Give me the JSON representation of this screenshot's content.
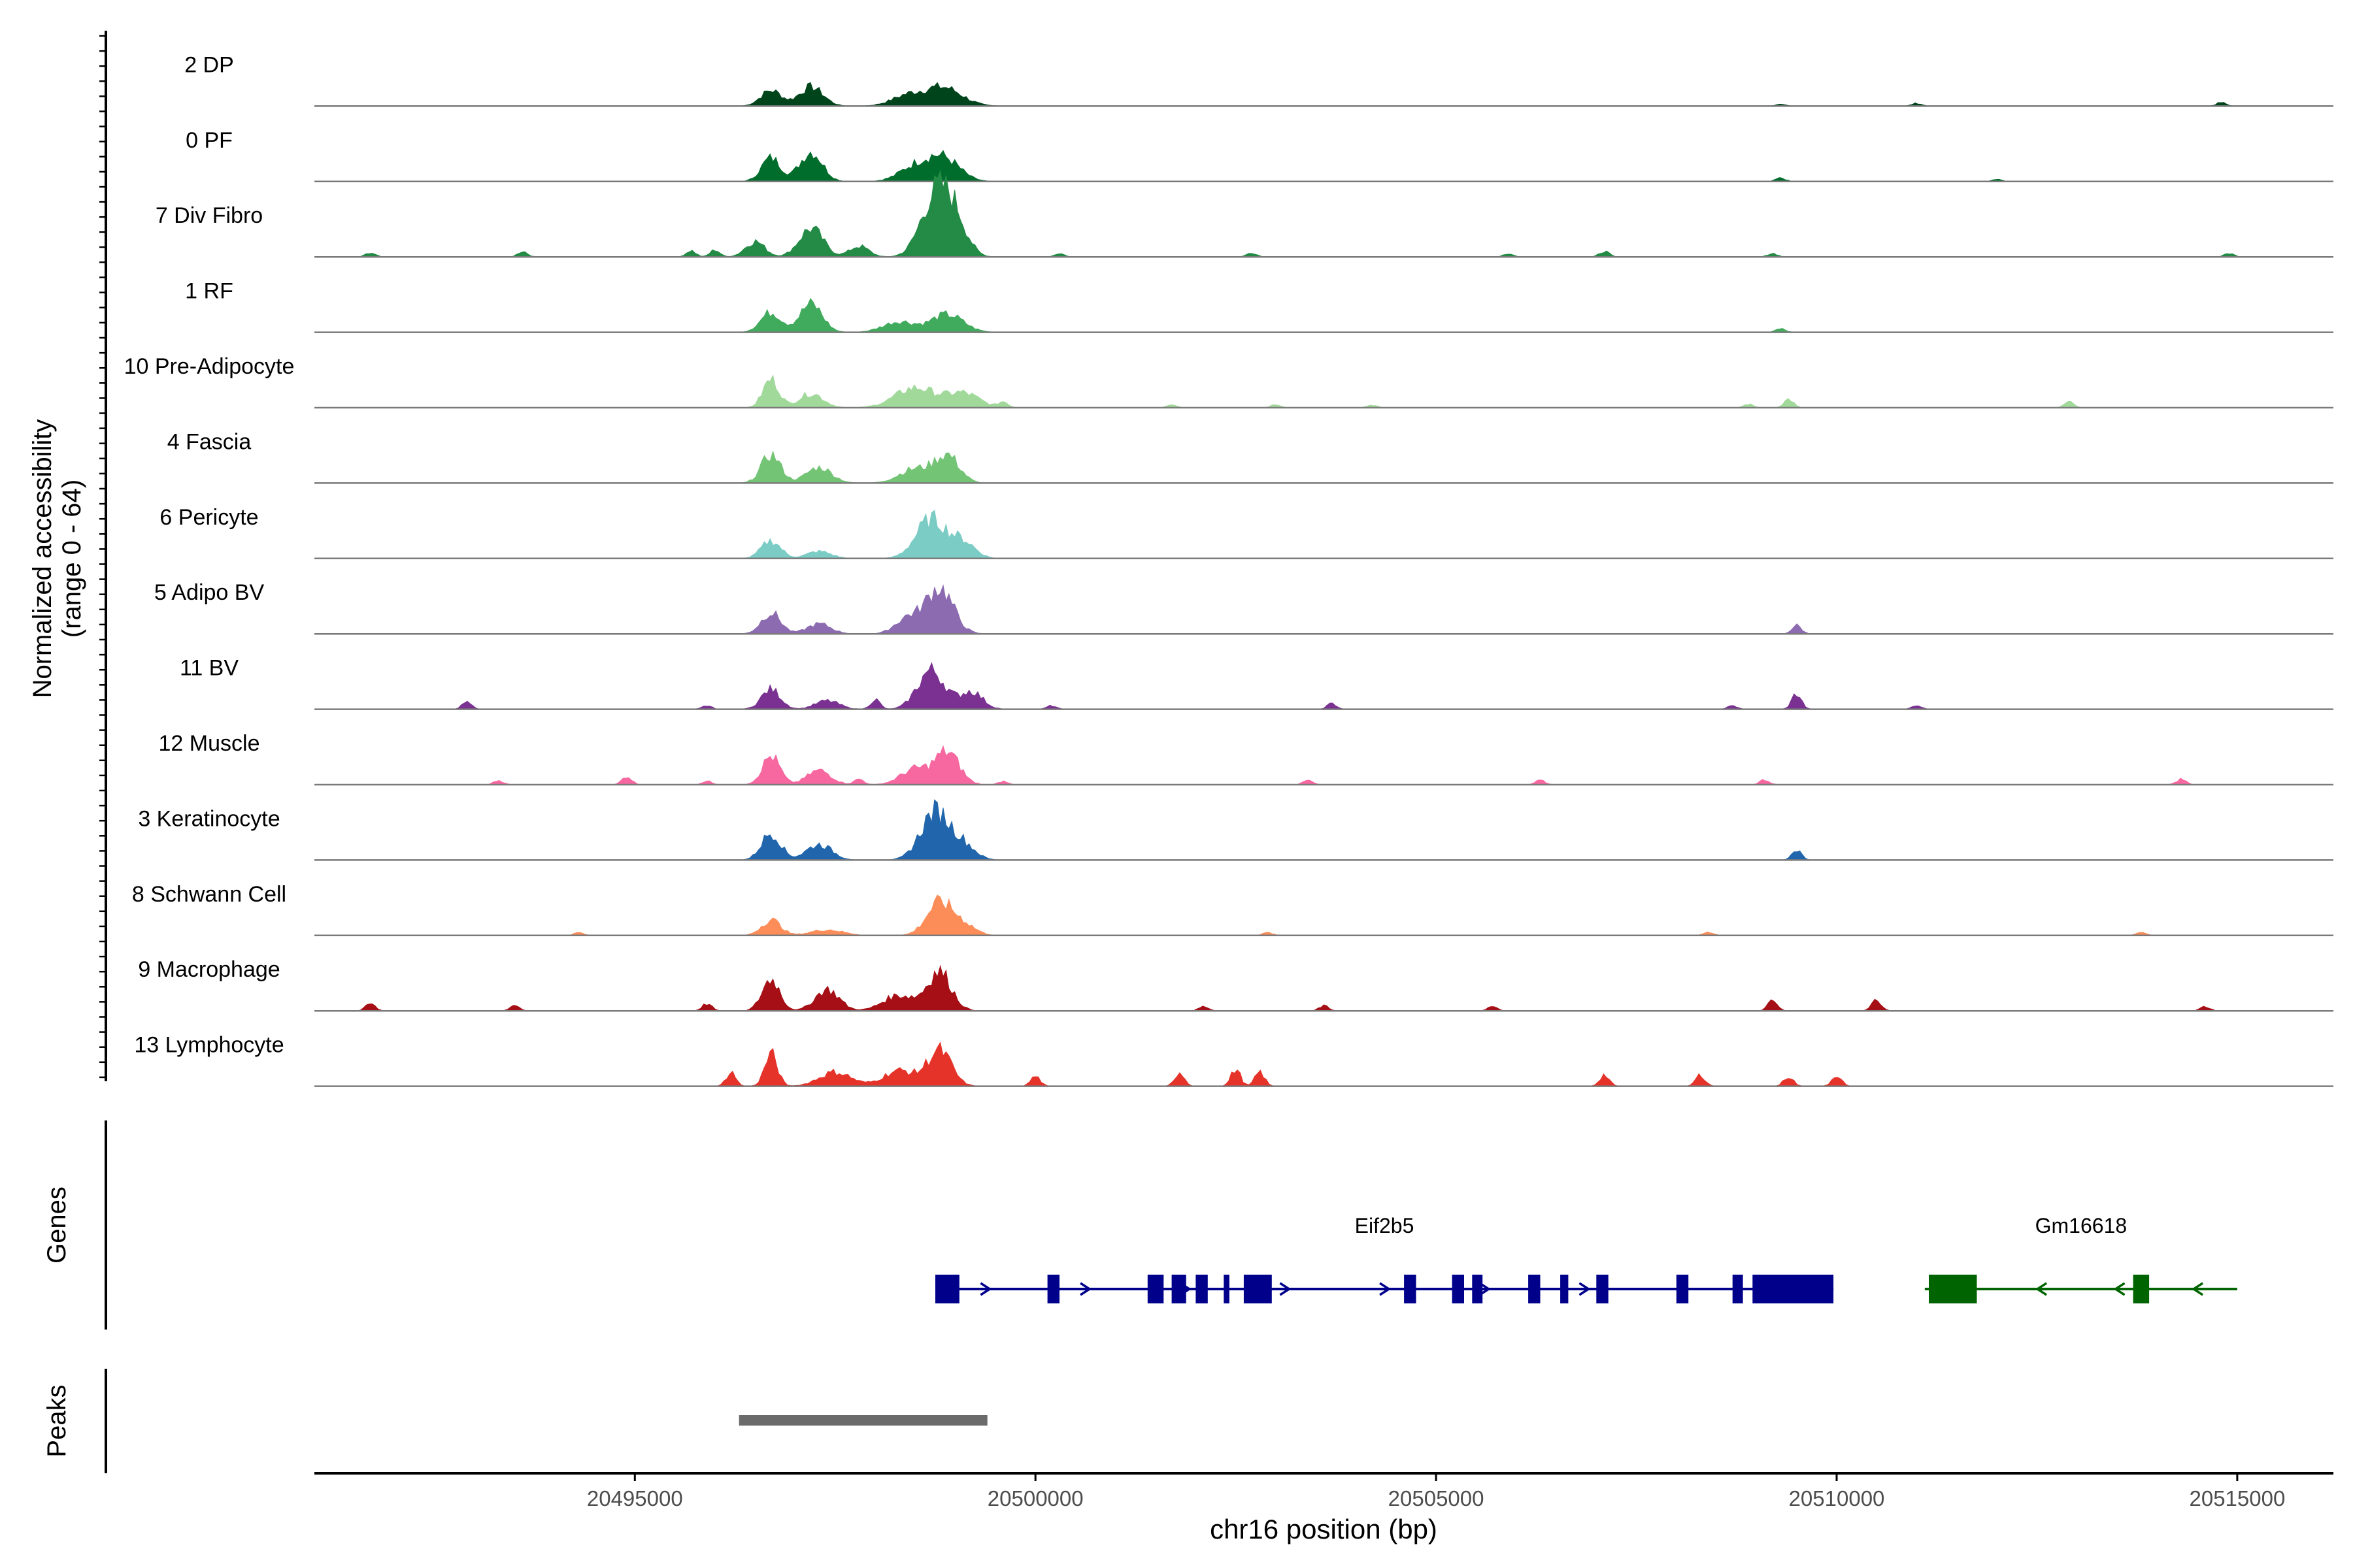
{
  "chart_data": {
    "type": "area",
    "title": "",
    "chromosome": "chr16",
    "xlabel": "chr16 position (bp)",
    "xlim": [
      20491000,
      20516200
    ],
    "xticks": [
      20495000,
      20500000,
      20505000,
      20510000,
      20515000
    ],
    "xtick_labels": [
      "20495000",
      "20500000",
      "20505000",
      "20510000",
      "20515000"
    ],
    "coverage_ylabel_line1": "Normalized accessibility",
    "coverage_ylabel_line2": "(range 0 - 64)",
    "ylim": [
      0,
      64
    ],
    "genes_panel_label": "Genes",
    "peaks_panel_label": "Peaks",
    "tracks": [
      {
        "name": "2 DP",
        "color": "#00441b",
        "peaks": [
          [
            20496700,
            0.22,
            130
          ],
          [
            20497200,
            0.27,
            150
          ],
          [
            20498400,
            0.14,
            200
          ],
          [
            20498850,
            0.26,
            230
          ]
        ],
        "bumps": [
          [
            20511000,
            0.04
          ],
          [
            20514800,
            0.05
          ],
          [
            20509300,
            0.03
          ]
        ]
      },
      {
        "name": "0 PF",
        "color": "#006d2c",
        "peaks": [
          [
            20496700,
            0.33,
            120
          ],
          [
            20497200,
            0.42,
            140
          ],
          [
            20498500,
            0.2,
            200
          ],
          [
            20498850,
            0.32,
            200
          ]
        ],
        "bumps": [
          [
            20509300,
            0.05
          ],
          [
            20512000,
            0.03
          ]
        ]
      },
      {
        "name": "7 Div Fibro",
        "color": "#238b45",
        "peaks": [
          [
            20496500,
            0.22,
            120
          ],
          [
            20497200,
            0.4,
            150
          ],
          [
            20497800,
            0.15,
            120
          ],
          [
            20498750,
            0.85,
            180
          ],
          [
            20499000,
            0.45,
            150
          ]
        ],
        "bumps": [
          [
            20491700,
            0.06
          ],
          [
            20493600,
            0.08
          ],
          [
            20495700,
            0.09
          ],
          [
            20496000,
            0.1
          ],
          [
            20500300,
            0.05
          ],
          [
            20502700,
            0.06
          ],
          [
            20505900,
            0.05
          ],
          [
            20507100,
            0.08
          ],
          [
            20509200,
            0.05
          ],
          [
            20514900,
            0.05
          ]
        ]
      },
      {
        "name": "1 RF",
        "color": "#41ab5d",
        "peaks": [
          [
            20496700,
            0.28,
            130
          ],
          [
            20497200,
            0.4,
            140
          ],
          [
            20498300,
            0.15,
            200
          ],
          [
            20498900,
            0.25,
            200
          ]
        ],
        "bumps": [
          [
            20509300,
            0.06
          ]
        ]
      },
      {
        "name": "10 Pre-Adipocyte",
        "color": "#a1d99b",
        "peaks": [
          [
            20496700,
            0.4,
            100
          ],
          [
            20497200,
            0.2,
            150
          ],
          [
            20498500,
            0.28,
            250
          ],
          [
            20499100,
            0.2,
            200
          ]
        ],
        "bumps": [
          [
            20499600,
            0.08
          ],
          [
            20501700,
            0.05
          ],
          [
            20503000,
            0.05
          ],
          [
            20504200,
            0.04
          ],
          [
            20508900,
            0.05
          ],
          [
            20509400,
            0.12
          ],
          [
            20512900,
            0.08
          ]
        ]
      },
      {
        "name": "4 Fascia",
        "color": "#74c476",
        "peaks": [
          [
            20496700,
            0.4,
            120
          ],
          [
            20497300,
            0.22,
            160
          ],
          [
            20498500,
            0.2,
            200
          ],
          [
            20498900,
            0.38,
            150
          ]
        ],
        "bumps": []
      },
      {
        "name": "6 Pericyte",
        "color": "#7bccc4",
        "peaks": [
          [
            20496700,
            0.25,
            120
          ],
          [
            20497300,
            0.1,
            150
          ],
          [
            20498700,
            0.55,
            190
          ],
          [
            20499100,
            0.22,
            150
          ]
        ],
        "bumps": []
      },
      {
        "name": "5 Adipo BV",
        "color": "#8c6bb1",
        "peaks": [
          [
            20496700,
            0.3,
            120
          ],
          [
            20497300,
            0.14,
            150
          ],
          [
            20498800,
            0.65,
            170
          ],
          [
            20498400,
            0.22,
            150
          ]
        ],
        "bumps": [
          [
            20509500,
            0.12
          ]
        ]
      },
      {
        "name": "11 BV",
        "color": "#7a3191",
        "peaks": [
          [
            20496700,
            0.28,
            120
          ],
          [
            20497400,
            0.12,
            150
          ],
          [
            20498700,
            0.55,
            170
          ],
          [
            20499200,
            0.25,
            140
          ]
        ],
        "bumps": [
          [
            20492900,
            0.1
          ],
          [
            20495900,
            0.05
          ],
          [
            20498000,
            0.14
          ],
          [
            20500200,
            0.05
          ],
          [
            20503700,
            0.08
          ],
          [
            20508700,
            0.05
          ],
          [
            20509500,
            0.22
          ],
          [
            20511000,
            0.05
          ]
        ]
      },
      {
        "name": "12 Muscle",
        "color": "#f768a1",
        "peaks": [
          [
            20496700,
            0.4,
            110
          ],
          [
            20497300,
            0.2,
            150
          ],
          [
            20498500,
            0.22,
            180
          ],
          [
            20498900,
            0.45,
            150
          ]
        ],
        "bumps": [
          [
            20493300,
            0.06
          ],
          [
            20494900,
            0.12
          ],
          [
            20495900,
            0.05
          ],
          [
            20497800,
            0.08
          ],
          [
            20499600,
            0.05
          ],
          [
            20503400,
            0.06
          ],
          [
            20506300,
            0.06
          ],
          [
            20509100,
            0.07
          ],
          [
            20514300,
            0.08
          ]
        ]
      },
      {
        "name": "3 Keratinocyte",
        "color": "#2166ac",
        "peaks": [
          [
            20496700,
            0.38,
            120
          ],
          [
            20497300,
            0.22,
            160
          ],
          [
            20498750,
            0.68,
            180
          ],
          [
            20499100,
            0.2,
            150
          ]
        ],
        "bumps": [
          [
            20509500,
            0.15
          ]
        ]
      },
      {
        "name": "8 Schwann Cell",
        "color": "#fc8d59",
        "peaks": [
          [
            20496700,
            0.22,
            120
          ],
          [
            20497400,
            0.08,
            200
          ],
          [
            20498800,
            0.45,
            160
          ],
          [
            20499100,
            0.15,
            150
          ]
        ],
        "bumps": [
          [
            20494300,
            0.04
          ],
          [
            20502900,
            0.04
          ],
          [
            20508400,
            0.05
          ],
          [
            20513800,
            0.05
          ]
        ]
      },
      {
        "name": "9 Macrophage",
        "color": "#a50f15",
        "peaks": [
          [
            20496700,
            0.45,
            110
          ],
          [
            20497400,
            0.3,
            150
          ],
          [
            20498300,
            0.22,
            200
          ],
          [
            20498800,
            0.55,
            150
          ]
        ],
        "bumps": [
          [
            20491700,
            0.1
          ],
          [
            20493500,
            0.08
          ],
          [
            20495900,
            0.1
          ],
          [
            20502100,
            0.06
          ],
          [
            20503600,
            0.07
          ],
          [
            20505700,
            0.06
          ],
          [
            20509200,
            0.14
          ],
          [
            20510500,
            0.16
          ],
          [
            20514600,
            0.06
          ]
        ]
      },
      {
        "name": "13 Lymphocyte",
        "color": "#e6332a",
        "peaks": [
          [
            20496700,
            0.45,
            80
          ],
          [
            20497500,
            0.2,
            200
          ],
          [
            20498800,
            0.5,
            150
          ],
          [
            20498300,
            0.22,
            200
          ]
        ],
        "bumps": [
          [
            20496200,
            0.2
          ],
          [
            20500000,
            0.14
          ],
          [
            20501800,
            0.2
          ],
          [
            20502500,
            0.24
          ],
          [
            20502800,
            0.2
          ],
          [
            20507100,
            0.16
          ],
          [
            20508300,
            0.16
          ],
          [
            20509400,
            0.14
          ],
          [
            20510000,
            0.16
          ]
        ]
      }
    ],
    "genes": [
      {
        "name": "Eif2b5",
        "strand": "+",
        "color": "#00008b",
        "start": 20498750,
        "end": 20509960,
        "exons": [
          [
            20498750,
            20499050
          ],
          [
            20500150,
            20500300
          ],
          [
            20501400,
            20501600
          ],
          [
            20501700,
            20501880
          ],
          [
            20502000,
            20502150
          ],
          [
            20502350,
            20502420
          ],
          [
            20502600,
            20502950
          ],
          [
            20504600,
            20504750
          ],
          [
            20505200,
            20505350
          ],
          [
            20505450,
            20505580
          ],
          [
            20506150,
            20506300
          ],
          [
            20506550,
            20506650
          ],
          [
            20507000,
            20507150
          ],
          [
            20508000,
            20508150
          ],
          [
            20508700,
            20508830
          ],
          [
            20508950,
            20509960
          ]
        ]
      },
      {
        "name": "Gm16618",
        "strand": "-",
        "color": "#006400",
        "start": 20511100,
        "end": 20515000,
        "exons": [
          [
            20511150,
            20511750
          ],
          [
            20513700,
            20513900
          ]
        ]
      }
    ],
    "peaks_regions": [
      [
        20496300,
        20499400
      ]
    ],
    "peaks_color": "#6b6b6b"
  }
}
